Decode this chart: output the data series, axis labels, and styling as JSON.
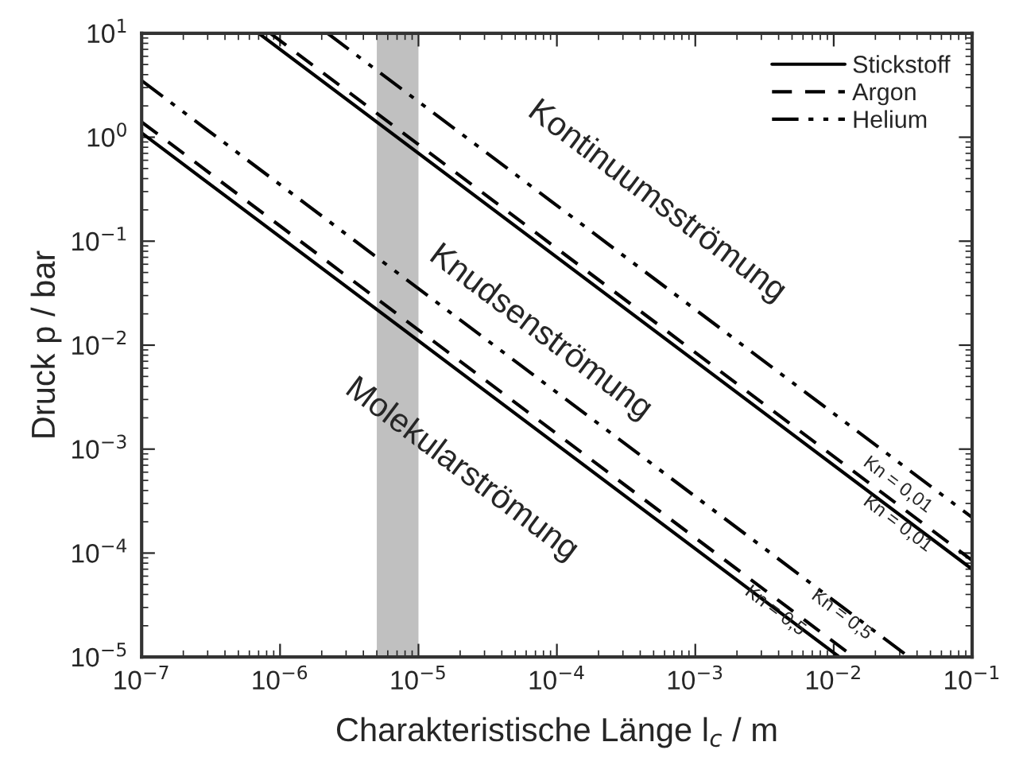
{
  "chart_data": {
    "type": "line",
    "xlabel": "Charakteristische Länge l$_{c}$ / m",
    "ylabel": "Druck p / bar",
    "log": "xy",
    "grid": false,
    "legend": "top right",
    "xlim": [
      1e-07,
      0.1
    ],
    "ylim": [
      1e-05,
      10
    ],
    "xticks": [
      {
        "value": 1e-07,
        "label": "10$^{−7}$"
      },
      {
        "value": 1e-06,
        "label": "10$^{−6}$"
      },
      {
        "value": 1e-05,
        "label": "10$^{−5}$"
      },
      {
        "value": 0.0001,
        "label": "10$^{−4}$"
      },
      {
        "value": 0.001,
        "label": "10$^{−3}$"
      },
      {
        "value": 0.01,
        "label": "10$^{−2}$"
      },
      {
        "value": 0.1,
        "label": "10$^{−1}$"
      }
    ],
    "yticks": [
      {
        "value": 1e-05,
        "label": "10$^{−5}$"
      },
      {
        "value": 0.0001,
        "label": "10$^{−4}$"
      },
      {
        "value": 0.001,
        "label": "10$^{−3}$"
      },
      {
        "value": 0.01,
        "label": "10$^{−2}$"
      },
      {
        "value": 0.1,
        "label": "10$^{−1}$"
      },
      {
        "value": 1,
        "label": "10$^{0}$"
      },
      {
        "value": 10,
        "label": "10$^{1}$"
      }
    ],
    "series": [
      {
        "name": "Stickstoff",
        "color": "#000000",
        "line_style": "solid",
        "x": [
          1e-07,
          0.011
        ],
        "values": [
          1.1,
          1e-05
        ]
      },
      {
        "name": "Argon",
        "color": "#000000",
        "line_style": "dashed",
        "x": [
          1e-07,
          0.014
        ],
        "values": [
          1.4,
          1e-05
        ]
      },
      {
        "name": "Helium",
        "color": "#000000",
        "line_style": "dashdotdot",
        "x": [
          1e-07,
          0.035
        ],
        "values": [
          3.5,
          1e-05
        ]
      },
      {
        "color": "#000000",
        "line_style": "solid",
        "x": [
          7e-07,
          0.1
        ],
        "values": [
          10,
          7e-05
        ]
      },
      {
        "color": "#000000",
        "line_style": "dashed",
        "x": [
          8.5e-07,
          0.1
        ],
        "values": [
          10,
          8.5e-05
        ]
      },
      {
        "color": "#000000",
        "line_style": "dashdotdot",
        "x": [
          2.2e-06,
          0.1
        ],
        "values": [
          10,
          0.00022
        ]
      }
    ],
    "bands": [
      {
        "axis": "x",
        "from": 5e-06,
        "to": 1e-05,
        "color": "#c0c0c0"
      }
    ],
    "annotations": [
      "Kontinuumsströmung",
      "Knudsenströmung",
      "Molekularströmung",
      {
        "text": "Kn = 0,01",
        "x": 0.033,
        "y": 0.00057
      },
      {
        "text": "Kn = 0,01",
        "x": 0.033,
        "y": 0.00024
      },
      {
        "text": "Kn = 0,5",
        "x": 0.013,
        "y": 3.2e-05
      },
      {
        "text": "Kn = 0,5",
        "x": 0.0043,
        "y": 3.5e-05
      }
    ]
  }
}
